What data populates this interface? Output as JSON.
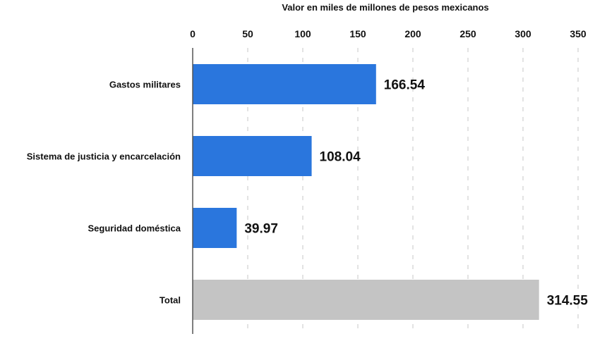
{
  "chart_data": {
    "type": "bar",
    "orientation": "horizontal",
    "title": "Valor en miles de millones de pesos mexicanos",
    "xlabel": "Valor en miles de millones de pesos mexicanos",
    "ylabel": "",
    "categories": [
      "Gastos militares",
      "Sistema de justicia y encarcelación",
      "Seguridad doméstica",
      "Total"
    ],
    "values": [
      166.54,
      108.04,
      39.97,
      314.55
    ],
    "value_labels": [
      "166.54",
      "108.04",
      "39.97",
      "314.55"
    ],
    "colors": [
      "#2a76dd",
      "#2a76dd",
      "#2a76dd",
      "#c4c4c4"
    ],
    "xlim": [
      0,
      350
    ],
    "ticks": [
      0,
      50,
      100,
      150,
      200,
      250,
      300,
      350
    ],
    "tick_labels": [
      "0",
      "50",
      "100",
      "150",
      "200",
      "250",
      "300",
      "350"
    ],
    "grid": true,
    "axis_position": "top"
  }
}
